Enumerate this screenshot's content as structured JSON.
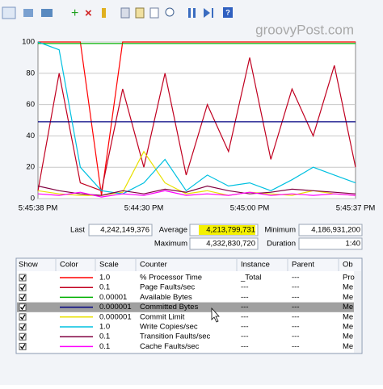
{
  "watermark": "groovyPost.com",
  "chart_data": {
    "type": "line",
    "ylim": [
      0,
      100
    ],
    "yticks": [
      0,
      20,
      40,
      60,
      80,
      100
    ],
    "grid": true,
    "x_tick_labels": [
      "5:45:38 PM",
      "5:44:30 PM",
      "5:45:00 PM",
      "5:45:37 PM"
    ],
    "series": [
      {
        "name": "% Processor Time",
        "color": "#ff0000",
        "values": [
          100,
          100,
          100,
          2,
          100,
          100,
          100,
          100,
          100,
          100,
          100,
          100,
          100,
          100,
          100,
          100
        ]
      },
      {
        "name": "Page Faults/sec",
        "color": "#c00020",
        "values": [
          5,
          80,
          10,
          5,
          70,
          20,
          80,
          15,
          60,
          30,
          90,
          25,
          70,
          40,
          85,
          20
        ]
      },
      {
        "name": "Available Bytes",
        "color": "#00b000",
        "values": [
          99,
          99,
          99,
          99,
          99,
          99,
          99,
          99,
          99,
          99,
          99,
          99,
          99,
          99,
          99,
          99
        ]
      },
      {
        "name": "Committed Bytes",
        "color": "#000080",
        "values": [
          49,
          49,
          49,
          49,
          49,
          49,
          49,
          49,
          49,
          49,
          49,
          49,
          49,
          49,
          49,
          49
        ]
      },
      {
        "name": "Commit Limit",
        "color": "#e8e000",
        "values": [
          5,
          3,
          2,
          2,
          4,
          30,
          10,
          3,
          5,
          2,
          4,
          3,
          2,
          5,
          3,
          2
        ]
      },
      {
        "name": "Write Copies/sec",
        "color": "#00c0e0",
        "values": [
          100,
          95,
          20,
          5,
          3,
          10,
          25,
          5,
          15,
          8,
          10,
          5,
          12,
          20,
          15,
          10
        ]
      },
      {
        "name": "Transition Faults/sec",
        "color": "#800040",
        "values": [
          8,
          5,
          3,
          2,
          5,
          3,
          6,
          4,
          8,
          5,
          3,
          4,
          6,
          5,
          4,
          3
        ]
      },
      {
        "name": "Cache Faults/sec",
        "color": "#ff00ff",
        "values": [
          3,
          2,
          4,
          1,
          3,
          2,
          5,
          2,
          3,
          2,
          4,
          2,
          3,
          2,
          3,
          2
        ]
      }
    ]
  },
  "stats": {
    "last_label": "Last",
    "last": "4,242,149,376",
    "average_label": "Average",
    "average": "4,213,799,731",
    "minimum_label": "Minimum",
    "minimum": "4,186,931,200",
    "maximum_label": "Maximum",
    "maximum": "4,332,830,720",
    "duration_label": "Duration",
    "duration": "1:40"
  },
  "table": {
    "columns": [
      "Show",
      "Color",
      "Scale",
      "Counter",
      "Instance",
      "Parent",
      "Ob"
    ],
    "rows": [
      [
        "1.0",
        "% Processor Time",
        "_Total",
        "---",
        "Pro"
      ],
      [
        "0.1",
        "Page Faults/sec",
        "---",
        "---",
        "Me"
      ],
      [
        "0.00001",
        "Available Bytes",
        "---",
        "---",
        "Me"
      ],
      [
        "0.000001",
        "Committed Bytes",
        "---",
        "---",
        "Me"
      ],
      [
        "0.000001",
        "Commit Limit",
        "---",
        "---",
        "Me"
      ],
      [
        "1.0",
        "Write Copies/sec",
        "---",
        "---",
        "Me"
      ],
      [
        "0.1",
        "Transition Faults/sec",
        "---",
        "---",
        "Me"
      ],
      [
        "0.1",
        "Cache Faults/sec",
        "---",
        "---",
        "Me"
      ]
    ]
  }
}
